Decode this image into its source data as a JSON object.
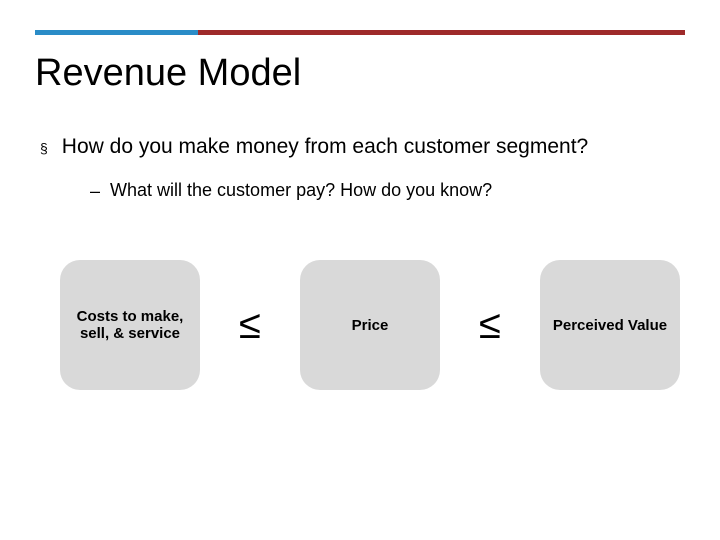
{
  "accent": {
    "blue": "#2a8cc7",
    "red": "#9e2a2a",
    "box_bg": "#d9d9d9"
  },
  "title": "Revenue Model",
  "bullet": {
    "marker": "§",
    "text": "How do you make money from each customer segment?"
  },
  "sub_bullet": {
    "marker": "–",
    "text": "What will the customer pay? How do you know?"
  },
  "diagram": {
    "boxes": [
      {
        "label": "Costs to make, sell, & service"
      },
      {
        "label": "Price"
      },
      {
        "label": "Perceived Value"
      }
    ],
    "operator": "≤"
  }
}
